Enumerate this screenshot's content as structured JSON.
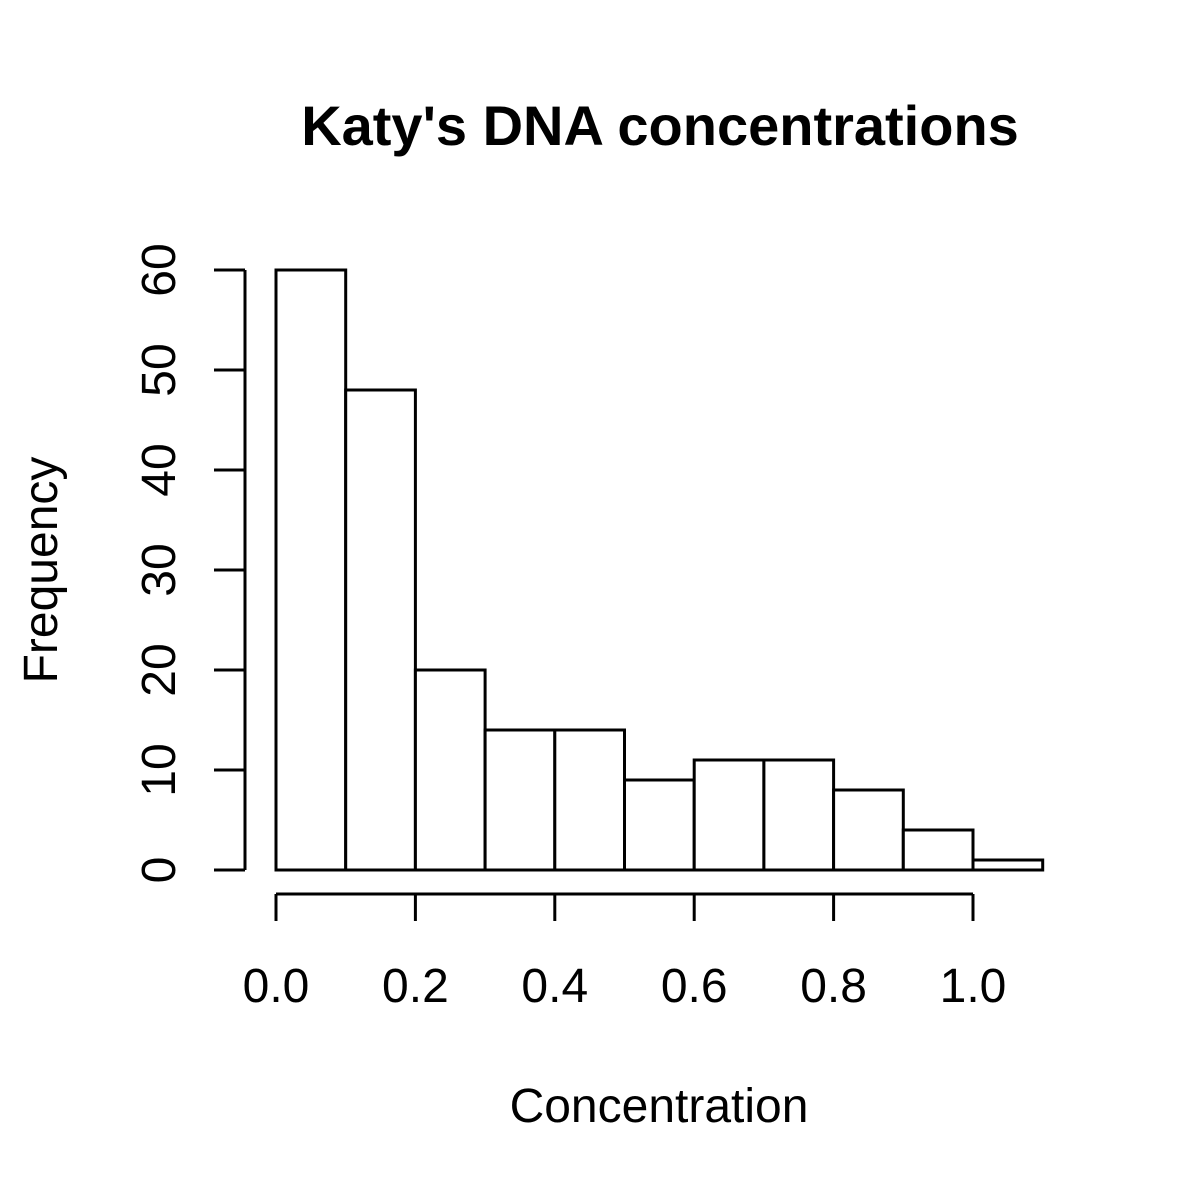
{
  "chart_data": {
    "type": "bar",
    "title": "Katy's DNA concentrations",
    "xlabel": "Concentration",
    "ylabel": "Frequency",
    "bins": [
      {
        "start": 0.0,
        "end": 0.1,
        "count": 60
      },
      {
        "start": 0.1,
        "end": 0.2,
        "count": 48
      },
      {
        "start": 0.2,
        "end": 0.3,
        "count": 20
      },
      {
        "start": 0.3,
        "end": 0.4,
        "count": 14
      },
      {
        "start": 0.4,
        "end": 0.5,
        "count": 14
      },
      {
        "start": 0.5,
        "end": 0.6,
        "count": 9
      },
      {
        "start": 0.6,
        "end": 0.7,
        "count": 11
      },
      {
        "start": 0.7,
        "end": 0.8,
        "count": 11
      },
      {
        "start": 0.8,
        "end": 0.9,
        "count": 8
      },
      {
        "start": 0.9,
        "end": 1.0,
        "count": 4
      },
      {
        "start": 1.0,
        "end": 1.1,
        "count": 1
      }
    ],
    "xlim": [
      0.0,
      1.1
    ],
    "ylim": [
      0,
      60
    ],
    "x_ticks": [
      0.0,
      0.2,
      0.4,
      0.6,
      0.8,
      1.0
    ],
    "x_tick_labels": [
      "0.0",
      "0.2",
      "0.4",
      "0.6",
      "0.8",
      "1.0"
    ],
    "y_ticks": [
      0,
      10,
      20,
      30,
      40,
      50,
      60
    ],
    "y_tick_labels": [
      "0",
      "10",
      "20",
      "30",
      "40",
      "50",
      "60"
    ],
    "grid": false,
    "legend": "none",
    "colors": {
      "bar_fill": "#ffffff",
      "bar_stroke": "#000000",
      "background": "#ffffff"
    }
  }
}
